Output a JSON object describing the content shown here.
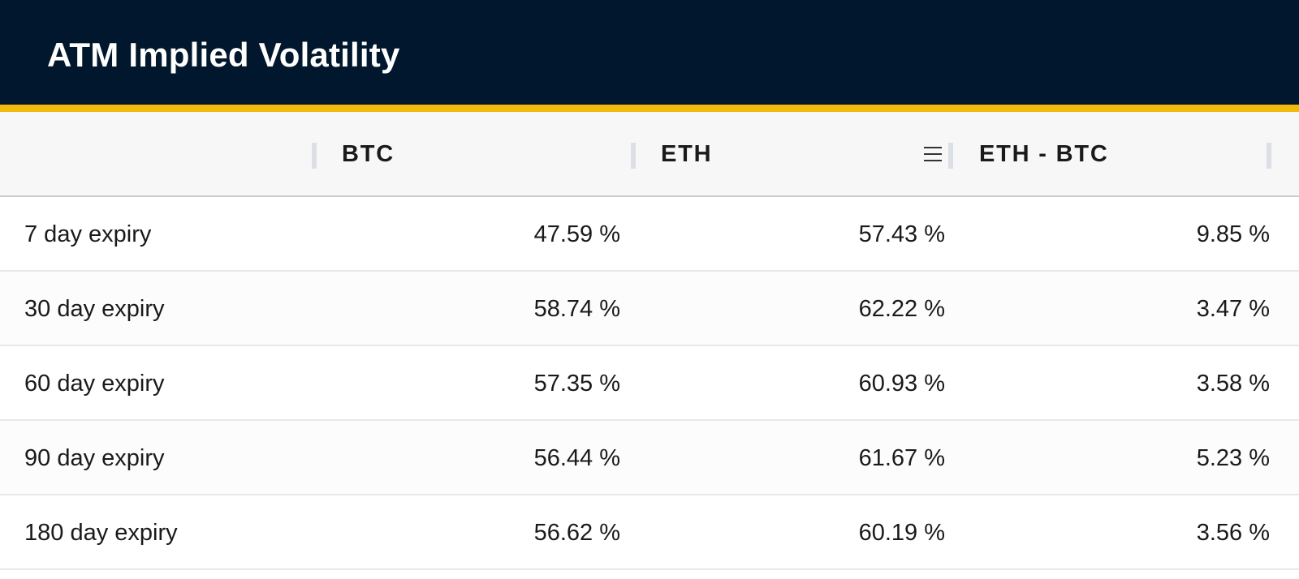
{
  "header": {
    "title": "ATM Implied Volatility"
  },
  "table": {
    "columns": [
      "",
      "BTC",
      "ETH",
      "ETH - BTC"
    ],
    "rows": [
      {
        "label": "7 day expiry",
        "btc": "47.59 %",
        "eth": "57.43 %",
        "diff": "9.85 %"
      },
      {
        "label": "30 day expiry",
        "btc": "58.74 %",
        "eth": "62.22 %",
        "diff": "3.47 %"
      },
      {
        "label": "60 day expiry",
        "btc": "57.35 %",
        "eth": "60.93 %",
        "diff": "3.58 %"
      },
      {
        "label": "90 day expiry",
        "btc": "56.44 %",
        "eth": "61.67 %",
        "diff": "5.23 %"
      },
      {
        "label": "180 day expiry",
        "btc": "56.62 %",
        "eth": "60.19 %",
        "diff": "3.56 %"
      }
    ]
  },
  "icons": {
    "column_menu": "menu-icon"
  },
  "colors": {
    "header_bg": "#01172d",
    "accent": "#f0b90b"
  }
}
